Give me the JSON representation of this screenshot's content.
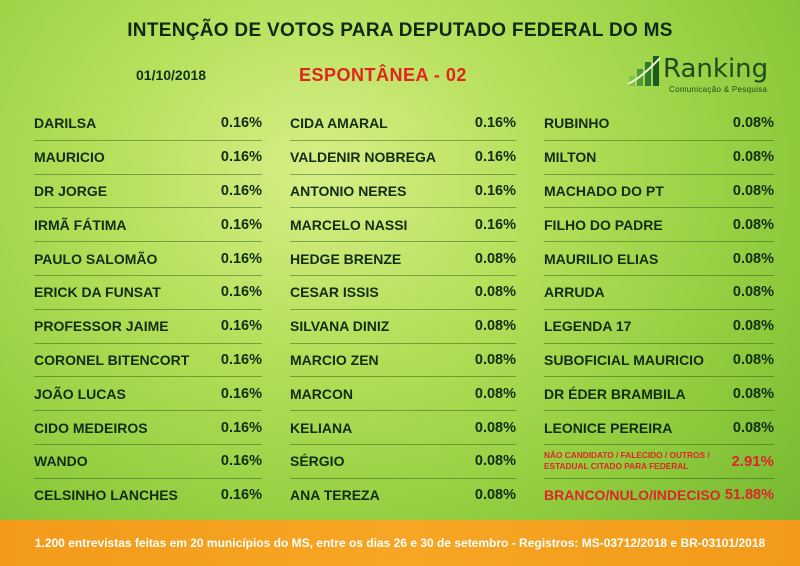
{
  "title": "INTENÇÃO DE VOTOS PARA DEPUTADO FEDERAL DO MS",
  "date": "01/10/2018",
  "subtitle": "ESPONTÂNEA - 02",
  "logo": {
    "name": "Ranking",
    "tagline": "Comunicação & Pesquisa"
  },
  "columns": [
    [
      {
        "name": "DARILSA",
        "pct": "0.16%"
      },
      {
        "name": "MAURICIO",
        "pct": "0.16%"
      },
      {
        "name": "DR JORGE",
        "pct": "0.16%"
      },
      {
        "name": "IRMÃ FÁTIMA",
        "pct": "0.16%"
      },
      {
        "name": "PAULO SALOMÃO",
        "pct": "0.16%"
      },
      {
        "name": "ERICK DA FUNSAT",
        "pct": "0.16%"
      },
      {
        "name": "PROFESSOR JAIME",
        "pct": "0.16%"
      },
      {
        "name": "CORONEL BITENCORT",
        "pct": "0.16%"
      },
      {
        "name": "JOÃO LUCAS",
        "pct": "0.16%"
      },
      {
        "name": "CIDO MEDEIROS",
        "pct": "0.16%"
      },
      {
        "name": "WANDO",
        "pct": "0.16%"
      },
      {
        "name": "CELSINHO LANCHES",
        "pct": "0.16%"
      }
    ],
    [
      {
        "name": "CIDA AMARAL",
        "pct": "0.16%"
      },
      {
        "name": "VALDENIR NOBREGA",
        "pct": "0.16%"
      },
      {
        "name": "ANTONIO NERES",
        "pct": "0.16%"
      },
      {
        "name": "MARCELO NASSI",
        "pct": "0.16%"
      },
      {
        "name": "HEDGE BRENZE",
        "pct": "0.08%"
      },
      {
        "name": "CESAR ISSIS",
        "pct": "0.08%"
      },
      {
        "name": "SILVANA DINIZ",
        "pct": "0.08%"
      },
      {
        "name": "MARCIO ZEN",
        "pct": "0.08%"
      },
      {
        "name": "MARCON",
        "pct": "0.08%"
      },
      {
        "name": "KELIANA",
        "pct": "0.08%"
      },
      {
        "name": "SÉRGIO",
        "pct": "0.08%"
      },
      {
        "name": "ANA TEREZA",
        "pct": "0.08%"
      }
    ],
    [
      {
        "name": "RUBINHO",
        "pct": "0.08%"
      },
      {
        "name": "MILTON",
        "pct": "0.08%"
      },
      {
        "name": "MACHADO DO PT",
        "pct": "0.08%"
      },
      {
        "name": "FILHO DO PADRE",
        "pct": "0.08%"
      },
      {
        "name": "MAURILIO ELIAS",
        "pct": "0.08%"
      },
      {
        "name": "ARRUDA",
        "pct": "0.08%"
      },
      {
        "name": "LEGENDA 17",
        "pct": "0.08%"
      },
      {
        "name": "SUBOFICIAL MAURICIO",
        "pct": "0.08%"
      },
      {
        "name": "DR ÉDER BRAMBILA",
        "pct": "0.08%"
      },
      {
        "name": "LEONICE PEREIRA",
        "pct": "0.08%"
      },
      {
        "name": "NÃO CANDIDATO / FALECIDO / OUTROS / ESTADUAL CITADO PARA FEDERAL",
        "pct": "2.91%",
        "style": "small"
      },
      {
        "name": "BRANCO/NULO/INDECISO",
        "pct": "51.88%",
        "style": "red"
      }
    ]
  ],
  "footer": "1.200 entrevistas feitas em 20 municípios do MS, entre os dias 26 e 30 de setembro - Registros: MS-03712/2018 e BR-03101/2018",
  "colors": {
    "accent_red": "#e0242a",
    "footer_orange": "#f39a1a",
    "text_dark": "#122d14"
  }
}
